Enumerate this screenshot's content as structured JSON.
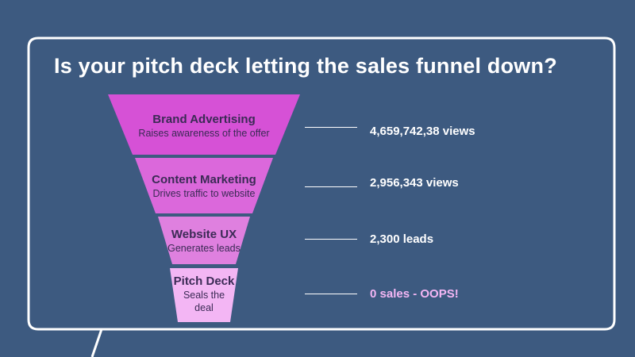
{
  "headline": "Is your pitch deck letting the sales funnel down?",
  "colors": {
    "background": "#3d5a80",
    "stage_1": "#d651d6",
    "stage_2": "#db68db",
    "stage_3": "#df80df",
    "stage_4": "#f3b6f4",
    "alert_text": "#f3b6f4",
    "stage_text": "#3b2a55"
  },
  "funnel": {
    "stages": [
      {
        "name": "Brand Advertising",
        "description": "Raises awareness of the offer",
        "metric": "4,659,742,38 views"
      },
      {
        "name": "Content Marketing",
        "description": "Drives traffic to website",
        "metric": "2,956,343 views"
      },
      {
        "name": "Website UX",
        "description": "Generates leads",
        "metric": "2,300 leads"
      },
      {
        "name": "Pitch Deck",
        "description": "Seals the deal",
        "description_lines": [
          "Seals the",
          "deal"
        ],
        "metric": "0 sales - OOPS!"
      }
    ]
  }
}
